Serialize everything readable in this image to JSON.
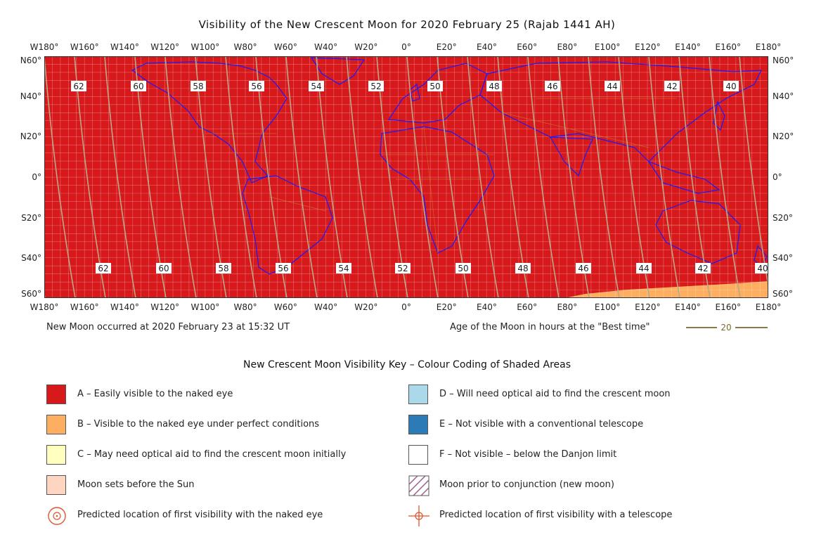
{
  "title": "Visibility of the New Crescent Moon for 2020 February 25 (Rajab 1441 AH)",
  "lon_labels": [
    "W180°",
    "W160°",
    "W140°",
    "W120°",
    "W100°",
    "W80°",
    "W60°",
    "W40°",
    "W20°",
    "0°",
    "E20°",
    "E40°",
    "E60°",
    "E80°",
    "E100°",
    "E120°",
    "E140°",
    "E160°",
    "E180°"
  ],
  "lat_labels": [
    "N60°",
    "N40°",
    "N20°",
    "0°",
    "S20°",
    "S40°",
    "S60°"
  ],
  "age_labels_north": [
    "62",
    "60",
    "58",
    "56",
    "54",
    "52",
    "50",
    "48",
    "46",
    "44",
    "42",
    "40"
  ],
  "age_labels_south": [
    "62",
    "60",
    "58",
    "56",
    "54",
    "52",
    "50",
    "48",
    "46",
    "44",
    "42",
    "40"
  ],
  "footer": {
    "new_moon": "New Moon occurred at 2020 February 23 at 15:32 UT",
    "age_caption": "Age of the Moon in hours at the \"Best time\"",
    "age_sample": "20"
  },
  "key": {
    "title": "New Crescent Moon Visibility Key – Colour Coding of Shaded Areas",
    "items": [
      {
        "label": "A – Easily visible to the naked eye",
        "color": "#d7191c"
      },
      {
        "label": "B – Visible to the naked eye under perfect conditions",
        "color": "#fdae61"
      },
      {
        "label": "C – May need optical aid to find the crescent moon initially",
        "color": "#ffffbf"
      },
      {
        "label": "Moon sets before the Sun",
        "color": "#fdd5c0"
      },
      {
        "label": "Predicted location of first visibility with the naked eye",
        "icon": "circled-dot-icon"
      },
      {
        "label": "D – Will need optical aid to find the crescent moon",
        "color": "#abd9e9"
      },
      {
        "label": "E – Not visible with a conventional telescope",
        "color": "#2c7bb6"
      },
      {
        "label": "F – Not visible – below the Danjon limit",
        "color": "#ffffff"
      },
      {
        "label": "Moon prior to conjunction (new moon)",
        "icon": "hatched-square-icon"
      },
      {
        "label": "Predicted location of first visibility with a telescope",
        "icon": "crosshair-icon"
      }
    ]
  },
  "colors": {
    "zone_a": "#d7191c",
    "zone_b": "#fdae61",
    "coast": "#1a1aff",
    "border": "#c8782a",
    "grid": "#ffffff",
    "age_lines": "#b9a888",
    "age_sample_line": "#7a6a2a"
  }
}
